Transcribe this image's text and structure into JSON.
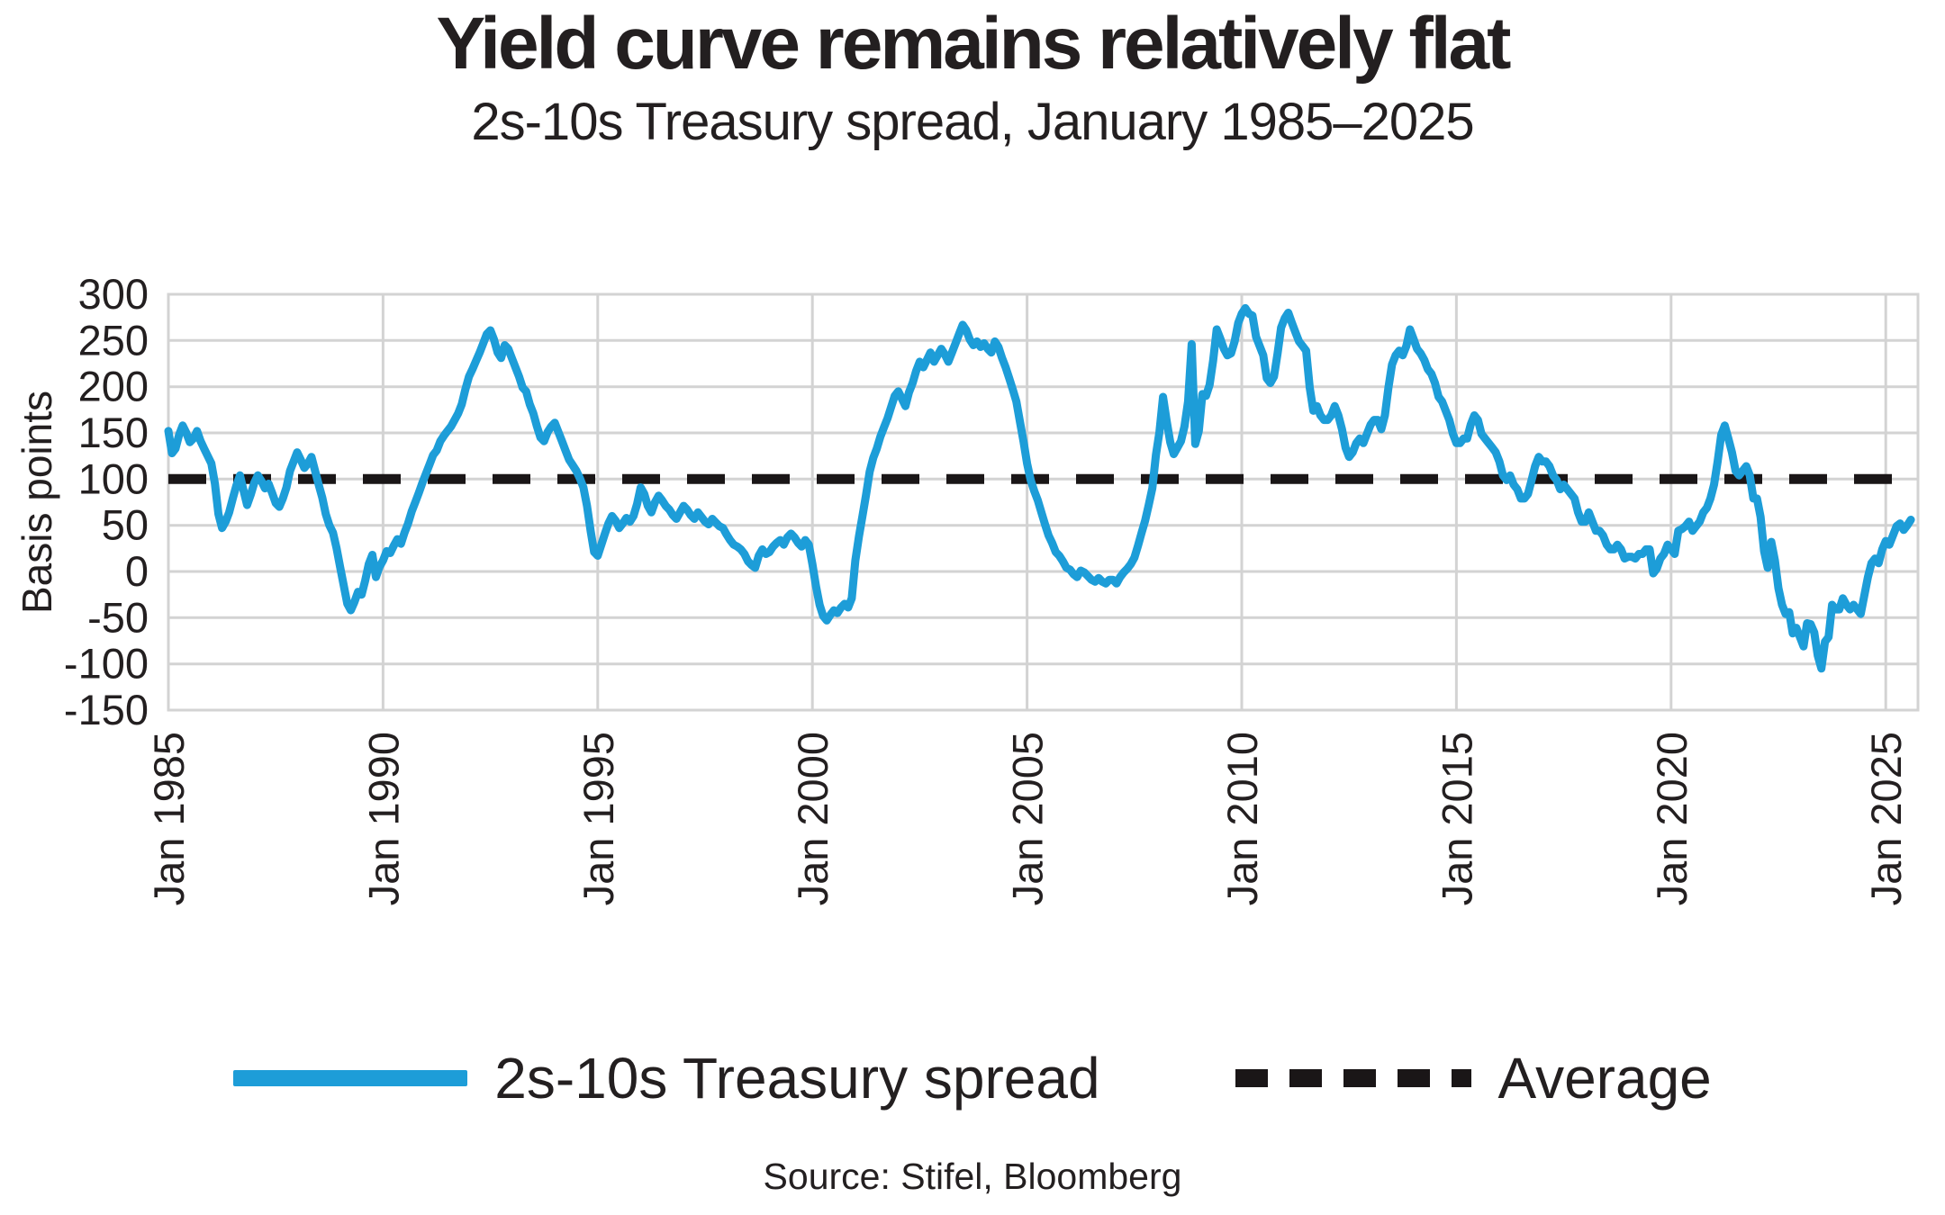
{
  "page": {
    "title": "Yield curve remains relatively flat",
    "subtitle": "2s-10s Treasury spread, January 1985–2025",
    "source": "Source: Stifel, Bloomberg"
  },
  "legend": {
    "items": [
      {
        "label": "2s-10s Treasury spread",
        "style": "solid",
        "color": "#1d9dd8"
      },
      {
        "label": "Average",
        "style": "dashed",
        "color": "#1a1617"
      }
    ]
  },
  "colors": {
    "series_blue": "#1d9dd8",
    "average_black": "#1a1617",
    "grid": "#d3d3d3",
    "text": "#231f20",
    "background": "#ffffff"
  },
  "chart_data": {
    "type": "line",
    "title": "Yield curve remains relatively flat",
    "subtitle": "2s-10s Treasury spread, January 1985–2025",
    "ylabel": "Basis points",
    "unit": "basis points",
    "grid": true,
    "legend_position": "bottom",
    "ylim": [
      -150,
      300
    ],
    "y_ticks": [
      300,
      250,
      200,
      150,
      100,
      50,
      0,
      -50,
      -100,
      -150
    ],
    "y_tick_labels": [
      "300",
      "250",
      "200",
      "150",
      "100",
      "50",
      "0",
      "-50",
      "-100",
      "-150"
    ],
    "xlim": [
      1985.0,
      2025.75
    ],
    "x_tick_years": [
      1985,
      1990,
      1995,
      2000,
      2005,
      2010,
      2015,
      2020,
      2025
    ],
    "x_tick_labels": [
      "Jan 1985",
      "Jan 1990",
      "Jan 1995",
      "Jan 2000",
      "Jan 2005",
      "Jan 2010",
      "Jan 2015",
      "Jan 2020",
      "Jan 2025"
    ],
    "average_line": {
      "label": "Average",
      "value_bp": 100,
      "style": "dashed"
    },
    "series": [
      {
        "name": "2s-10s Treasury spread",
        "color": "#1d9dd8",
        "start": "1985-01",
        "points_per_year": 12,
        "values_bp": [
          152,
          128,
          133,
          148,
          158,
          150,
          140,
          144,
          152,
          141,
          133,
          125,
          117,
          95,
          62,
          47,
          54,
          64,
          79,
          93,
          104,
          88,
          72,
          83,
          96,
          104,
          98,
          90,
          95,
          85,
          74,
          70,
          79,
          91,
          109,
          119,
          129,
          121,
          112,
          117,
          124,
          109,
          94,
          80,
          62,
          50,
          42,
          25,
          5,
          -15,
          -35,
          -42,
          -33,
          -22,
          -25,
          -10,
          8,
          18,
          -6,
          5,
          12,
          22,
          20,
          28,
          35,
          30,
          42,
          52,
          65,
          75,
          85,
          96,
          106,
          116,
          126,
          131,
          141,
          147,
          152,
          157,
          164,
          171,
          181,
          197,
          211,
          219,
          228,
          237,
          247,
          257,
          261,
          251,
          237,
          231,
          245,
          241,
          231,
          221,
          211,
          199,
          195,
          181,
          171,
          157,
          145,
          141,
          151,
          157,
          161,
          151,
          141,
          131,
          121,
          115,
          109,
          101,
          91,
          71,
          44,
          21,
          17,
          29,
          41,
          52,
          60,
          55,
          47,
          52,
          58,
          54,
          60,
          73,
          91,
          84,
          71,
          64,
          75,
          82,
          77,
          71,
          67,
          61,
          57,
          64,
          71,
          67,
          61,
          57,
          64,
          59,
          54,
          51,
          57,
          53,
          49,
          47,
          40,
          34,
          29,
          27,
          24,
          19,
          11,
          7,
          4,
          17,
          24,
          19,
          21,
          27,
          31,
          34,
          29,
          37,
          41,
          37,
          31,
          27,
          34,
          29,
          8,
          -16,
          -36,
          -48,
          -53,
          -47,
          -42,
          -45,
          -39,
          -35,
          -39,
          -29,
          12,
          38,
          60,
          83,
          108,
          123,
          133,
          146,
          156,
          166,
          178,
          190,
          195,
          187,
          179,
          194,
          204,
          217,
          227,
          221,
          229,
          237,
          227,
          234,
          241,
          235,
          227,
          237,
          247,
          257,
          267,
          261,
          251,
          245,
          249,
          243,
          247,
          241,
          237,
          249,
          243,
          231,
          221,
          209,
          197,
          184,
          162,
          141,
          117,
          99,
          87,
          77,
          64,
          51,
          39,
          31,
          21,
          17,
          11,
          4,
          2,
          -3,
          -6,
          1,
          -1,
          -5,
          -9,
          -11,
          -7,
          -11,
          -13,
          -9,
          -9,
          -13,
          -6,
          -1,
          3,
          8,
          15,
          28,
          42,
          55,
          72,
          90,
          126,
          151,
          189,
          163,
          140,
          127,
          134,
          141,
          157,
          184,
          246,
          138,
          152,
          192,
          190,
          202,
          228,
          262,
          252,
          241,
          234,
          236,
          249,
          269,
          279,
          285,
          279,
          277,
          254,
          244,
          234,
          209,
          204,
          211,
          236,
          264,
          274,
          280,
          269,
          259,
          249,
          244,
          239,
          199,
          174,
          179,
          169,
          164,
          164,
          169,
          179,
          169,
          154,
          134,
          124,
          129,
          139,
          144,
          139,
          149,
          159,
          164,
          164,
          154,
          169,
          199,
          224,
          234,
          239,
          234,
          244,
          262,
          252,
          241,
          236,
          229,
          219,
          214,
          204,
          189,
          184,
          174,
          164,
          149,
          139,
          139,
          144,
          144,
          159,
          169,
          164,
          149,
          144,
          139,
          134,
          129,
          119,
          104,
          99,
          104,
          94,
          89,
          79,
          79,
          84,
          99,
          114,
          124,
          119,
          119,
          114,
          104,
          99,
          89,
          94,
          89,
          84,
          79,
          64,
          54,
          54,
          64,
          54,
          44,
          44,
          39,
          29,
          24,
          24,
          29,
          24,
          14,
          16,
          16,
          14,
          19,
          19,
          24,
          24,
          -2,
          3,
          14,
          19,
          29,
          24,
          19,
          44,
          46,
          49,
          54,
          44,
          49,
          54,
          64,
          69,
          79,
          94,
          119,
          148,
          158,
          144,
          129,
          109,
          104,
          109,
          114,
          104,
          79,
          79,
          59,
          22,
          4,
          32,
          12,
          -18,
          -36,
          -46,
          -44,
          -67,
          -61,
          -71,
          -81,
          -56,
          -57,
          -66,
          -91,
          -105,
          -76,
          -71,
          -36,
          -41,
          -41,
          -29,
          -36,
          -41,
          -36,
          -41,
          -46,
          -26,
          -6,
          9,
          14,
          9,
          24,
          33,
          29,
          39,
          49,
          52,
          45,
          50,
          56
        ]
      }
    ]
  }
}
